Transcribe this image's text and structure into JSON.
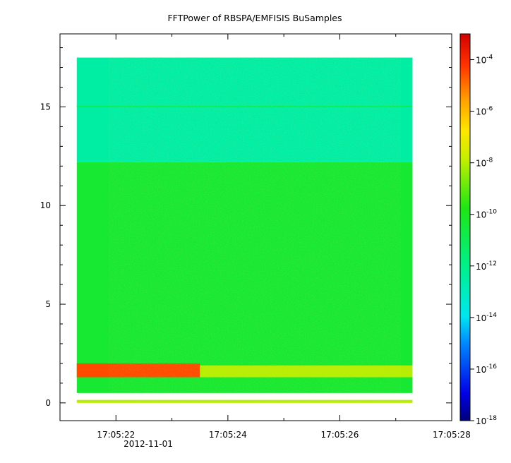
{
  "chart_data": {
    "type": "heatmap",
    "title": "FFTPower of RBSPA/EMFISIS  BuSamples",
    "xlabel": "",
    "ylabel": "",
    "x_ticks": [
      "17:05:22",
      "17:05:24",
      "17:05:26",
      "17:05:28"
    ],
    "x_date_label": "2012-11-01",
    "x_range": [
      "17:05:21.0",
      "17:05:28.0"
    ],
    "y_ticks": [
      "0",
      "5",
      "10",
      "15"
    ],
    "y_range": [
      -0.9,
      18.7
    ],
    "data_extent": {
      "x": [
        "17:05:21.3",
        "17:05:27.3"
      ],
      "y": [
        0,
        17.5
      ]
    },
    "colorbar": {
      "scale": "log",
      "range": [
        1e-18,
        0.001
      ],
      "tick_base": "10",
      "tick_exponents": [
        "-4",
        "-6",
        "-8",
        "-10",
        "-12",
        "-14",
        "-16",
        "-18"
      ]
    },
    "bands": [
      {
        "y_from": 12.2,
        "y_to": 17.5,
        "level_exp": -12.5
      },
      {
        "y_from": 15.0,
        "y_to": 15.05,
        "level_exp": -11
      },
      {
        "y_from": 0.5,
        "y_to": 12.2,
        "level_exp": -10.3
      },
      {
        "y_from": 1.3,
        "y_to": 2.0,
        "x_from": "17:05:21.3",
        "x_to": "17:05:23.5",
        "level_exp": -4.5
      },
      {
        "y_from": 1.3,
        "y_to": 1.9,
        "x_from": "17:05:23.5",
        "x_to": "17:05:27.3",
        "level_exp": -8
      },
      {
        "y_from": 0.0,
        "y_to": 0.15,
        "level_exp": -8
      }
    ]
  }
}
